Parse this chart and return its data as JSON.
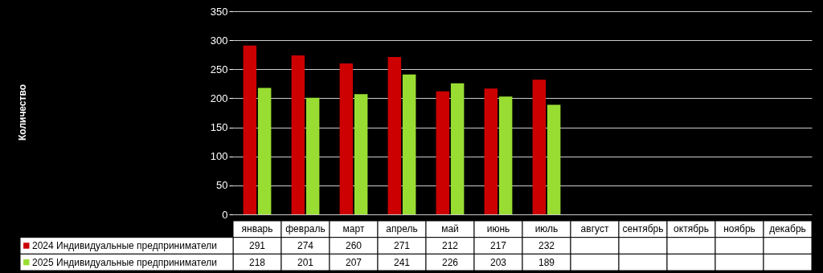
{
  "chart_data": {
    "type": "bar",
    "annotations": [
      "Количество"
    ],
    "categories": [
      "январь",
      "февраль",
      "март",
      "апрель",
      "май",
      "июнь",
      "июль",
      "август",
      "сентябрь",
      "октябрь",
      "ноябрь",
      "декабрь"
    ],
    "series": [
      {
        "name": "2024 Индивидуальные предприниматели",
        "color": "#cc0000",
        "values": [
          291,
          274,
          260,
          271,
          212,
          217,
          232,
          null,
          null,
          null,
          null,
          null
        ]
      },
      {
        "name": "2025 Индивидуальные предприниматели",
        "color": "#99dd33",
        "values": [
          218,
          201,
          207,
          241,
          226,
          203,
          189,
          null,
          null,
          null,
          null,
          null
        ]
      }
    ],
    "ylim": [
      0,
      350
    ],
    "yticks": [
      0,
      50,
      100,
      150,
      200,
      250,
      300,
      350
    ],
    "grid": "y",
    "legend": "bottom left",
    "data_labels": true
  }
}
